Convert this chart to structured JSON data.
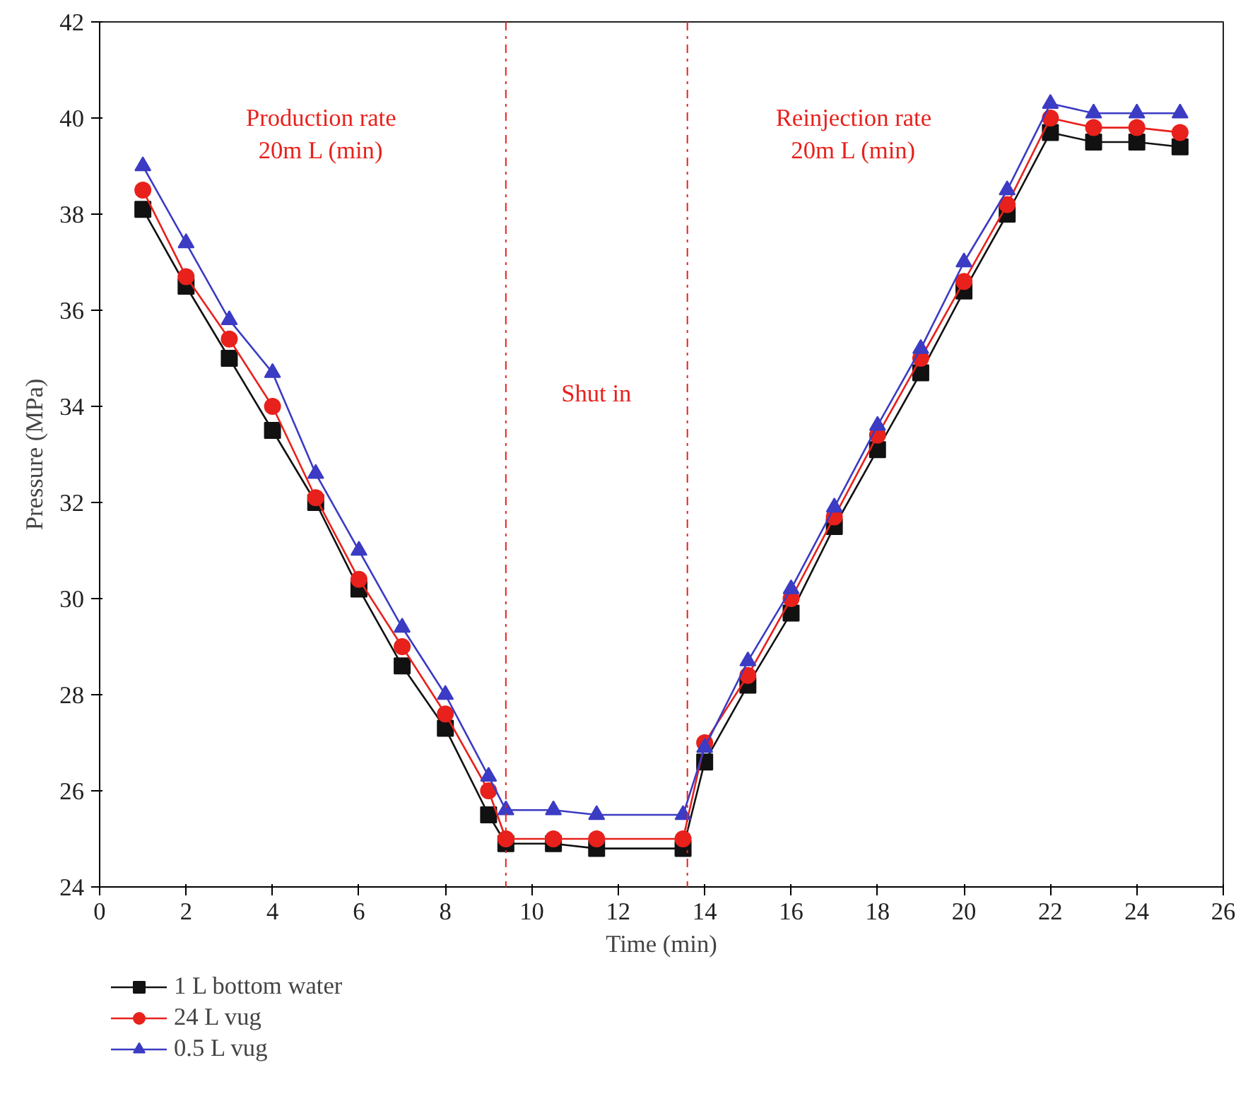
{
  "chart_data": {
    "type": "line",
    "xlabel": "Time (min)",
    "ylabel": "Pressure (MPa)",
    "x": [
      1,
      2,
      3,
      4,
      5,
      6,
      7,
      8,
      9,
      9.4,
      10.5,
      11.5,
      13.5,
      14,
      15,
      16,
      17,
      18,
      19,
      20,
      21,
      22,
      23,
      24,
      25
    ],
    "series": [
      {
        "name": "1 L bottom water",
        "color": "#111111",
        "marker": "square",
        "values": [
          38.1,
          36.5,
          35.0,
          33.5,
          32.0,
          30.2,
          28.6,
          27.3,
          25.5,
          24.9,
          24.9,
          24.8,
          24.8,
          26.6,
          28.2,
          29.7,
          31.5,
          33.1,
          34.7,
          36.4,
          38.0,
          39.7,
          39.5,
          39.5,
          39.4
        ]
      },
      {
        "name": "24 L vug",
        "color": "#e8211c",
        "marker": "circle",
        "values": [
          38.5,
          36.7,
          35.4,
          34.0,
          32.1,
          30.4,
          29.0,
          27.6,
          26.0,
          25.0,
          25.0,
          25.0,
          25.0,
          27.0,
          28.4,
          30.0,
          31.7,
          33.4,
          35.0,
          36.6,
          38.2,
          40.0,
          39.8,
          39.8,
          39.7
        ]
      },
      {
        "name": "0.5 L vug",
        "color": "#3b3bc4",
        "marker": "triangle",
        "values": [
          39.0,
          37.4,
          35.8,
          34.7,
          32.6,
          31.0,
          29.4,
          28.0,
          26.3,
          25.6,
          25.6,
          25.5,
          25.5,
          26.9,
          28.7,
          30.2,
          31.9,
          33.6,
          35.2,
          37.0,
          38.5,
          40.3,
          40.1,
          40.1,
          40.1
        ]
      }
    ],
    "xlim": [
      0,
      26
    ],
    "xticks": [
      0,
      2,
      4,
      6,
      8,
      10,
      12,
      14,
      16,
      18,
      20,
      22,
      24,
      26
    ],
    "ylim": [
      24,
      42
    ],
    "yticks": [
      24,
      26,
      28,
      30,
      32,
      34,
      36,
      38,
      40,
      42
    ],
    "ref_lines": [
      {
        "axis": "x",
        "value": 9.4,
        "color": "#e8211c",
        "line_style": "dashdot"
      },
      {
        "axis": "x",
        "value": 13.6,
        "color": "#e8211c",
        "line_style": "dashdot"
      }
    ],
    "annotations": [
      "Production rate\n20m L (min)",
      "Shut in",
      "Reinjection rate\n20m L (min)"
    ],
    "legend": "bottom left",
    "grid": false,
    "line_style": "solid"
  }
}
